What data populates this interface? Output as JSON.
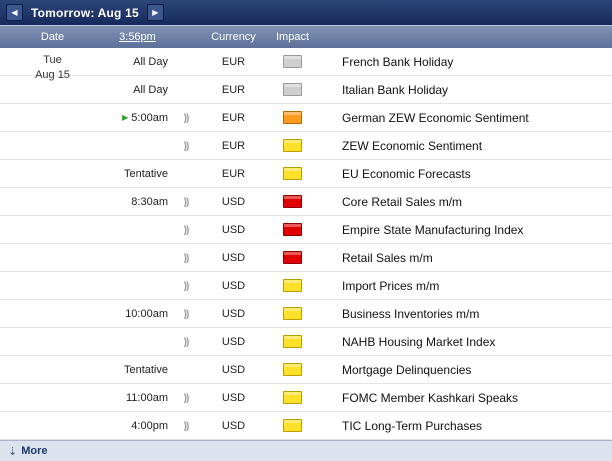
{
  "titlebar": {
    "prev": "◀",
    "title": "Tomorrow: Aug 15",
    "next": "▶"
  },
  "header": {
    "date": "Date",
    "time": "3:56pm",
    "currency": "Currency",
    "impact": "Impact"
  },
  "date_block": {
    "weekday": "Tue",
    "date": "Aug 15"
  },
  "impact_colors": {
    "holiday": {
      "bg": "#cfcfcf",
      "border": "#9a9a9a"
    },
    "low": {
      "bg": "#fde02a",
      "border": "#b8a000"
    },
    "medium": {
      "bg": "#ff9b1e",
      "border": "#b36a00"
    },
    "high": {
      "bg": "#e00000",
      "border": "#8f0000"
    }
  },
  "rows": [
    {
      "time": "All Day",
      "upnext": false,
      "speaker": false,
      "currency": "EUR",
      "impact": "holiday",
      "event": "French Bank Holiday"
    },
    {
      "time": "All Day",
      "upnext": false,
      "speaker": false,
      "currency": "EUR",
      "impact": "holiday",
      "event": "Italian Bank Holiday"
    },
    {
      "time": "5:00am",
      "upnext": true,
      "speaker": true,
      "currency": "EUR",
      "impact": "medium",
      "event": "German ZEW Economic Sentiment"
    },
    {
      "time": "",
      "upnext": false,
      "speaker": true,
      "currency": "EUR",
      "impact": "low",
      "event": "ZEW Economic Sentiment"
    },
    {
      "time": "Tentative",
      "upnext": false,
      "speaker": false,
      "currency": "EUR",
      "impact": "low",
      "event": "EU Economic Forecasts"
    },
    {
      "time": "8:30am",
      "upnext": false,
      "speaker": true,
      "currency": "USD",
      "impact": "high",
      "event": "Core Retail Sales m/m"
    },
    {
      "time": "",
      "upnext": false,
      "speaker": true,
      "currency": "USD",
      "impact": "high",
      "event": "Empire State Manufacturing Index"
    },
    {
      "time": "",
      "upnext": false,
      "speaker": true,
      "currency": "USD",
      "impact": "high",
      "event": "Retail Sales m/m"
    },
    {
      "time": "",
      "upnext": false,
      "speaker": true,
      "currency": "USD",
      "impact": "low",
      "event": "Import Prices m/m"
    },
    {
      "time": "10:00am",
      "upnext": false,
      "speaker": true,
      "currency": "USD",
      "impact": "low",
      "event": "Business Inventories m/m"
    },
    {
      "time": "",
      "upnext": false,
      "speaker": true,
      "currency": "USD",
      "impact": "low",
      "event": "NAHB Housing Market Index"
    },
    {
      "time": "Tentative",
      "upnext": false,
      "speaker": false,
      "currency": "USD",
      "impact": "low",
      "event": "Mortgage Delinquencies"
    },
    {
      "time": "11:00am",
      "upnext": false,
      "speaker": true,
      "currency": "USD",
      "impact": "low",
      "event": "FOMC Member Kashkari Speaks"
    },
    {
      "time": "4:00pm",
      "upnext": false,
      "speaker": true,
      "currency": "USD",
      "impact": "low",
      "event": "TIC Long-Term Purchases"
    }
  ],
  "footer": {
    "more": "More",
    "icon": "⇣"
  }
}
